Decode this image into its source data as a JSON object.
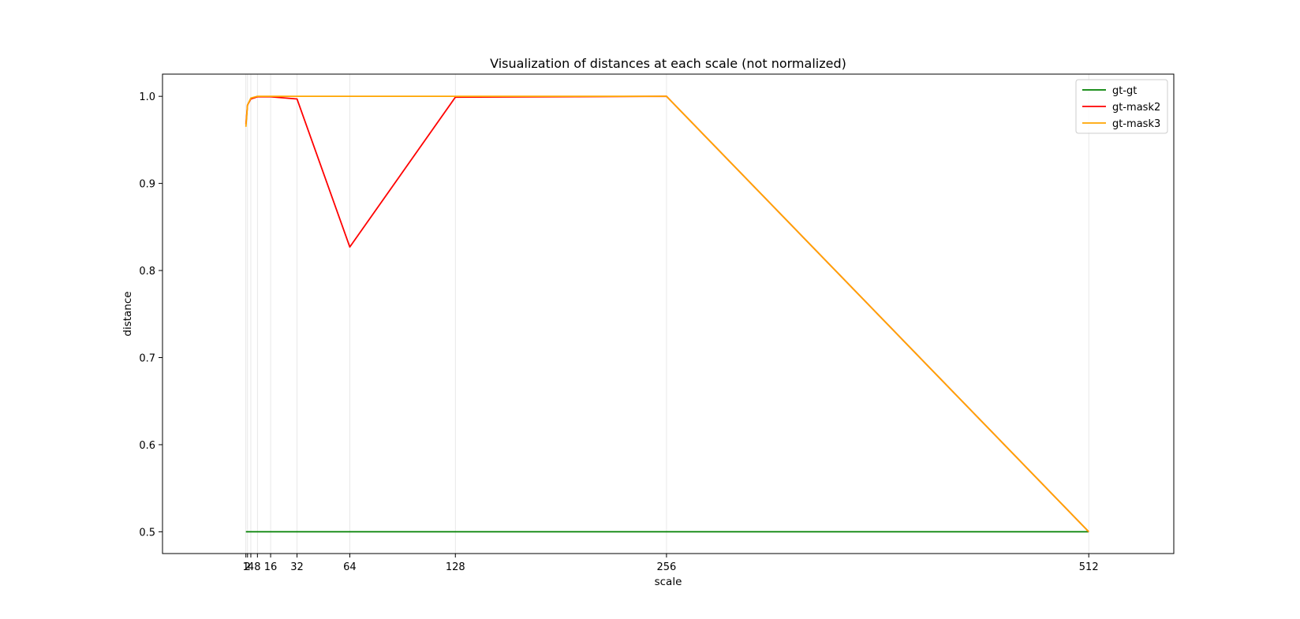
{
  "chart_data": {
    "type": "line",
    "title": "Visualization of distances at each scale (not normalized)",
    "xlabel": "scale",
    "ylabel": "distance",
    "x": [
      1,
      2,
      4,
      8,
      16,
      32,
      64,
      128,
      256,
      512
    ],
    "xticks": [
      1,
      2,
      4,
      8,
      16,
      32,
      64,
      128,
      256,
      512
    ],
    "xtick_labels": [
      "1",
      "2",
      "4",
      "8",
      "16",
      "32",
      "64",
      "128",
      "256",
      "512"
    ],
    "yticks": [
      0.5,
      0.6,
      0.7,
      0.8,
      0.9,
      1.0
    ],
    "ytick_labels": [
      "0.5",
      "0.6",
      "0.7",
      "0.8",
      "0.9",
      "1.0"
    ],
    "xlim": [
      -49.55,
      563.55
    ],
    "ylim": [
      0.475,
      1.0255
    ],
    "grid": "vertical lines at x ticks",
    "legend": "top-right",
    "series": [
      {
        "name": "gt-gt",
        "color": "#008000",
        "values": [
          0.5,
          0.5,
          0.5,
          0.5,
          0.5,
          0.5,
          0.5,
          0.5,
          0.5,
          0.5
        ]
      },
      {
        "name": "gt-mask2",
        "color": "#ff0000",
        "values": [
          0.968,
          0.99,
          0.997,
          0.9995,
          0.9995,
          0.997,
          0.827,
          0.999,
          1.0,
          0.5
        ]
      },
      {
        "name": "gt-mask3",
        "color": "#ffa500",
        "values": [
          0.965,
          0.99,
          0.998,
          1.0,
          1.0,
          1.0,
          1.0,
          1.0,
          1.0,
          0.5
        ]
      }
    ]
  }
}
